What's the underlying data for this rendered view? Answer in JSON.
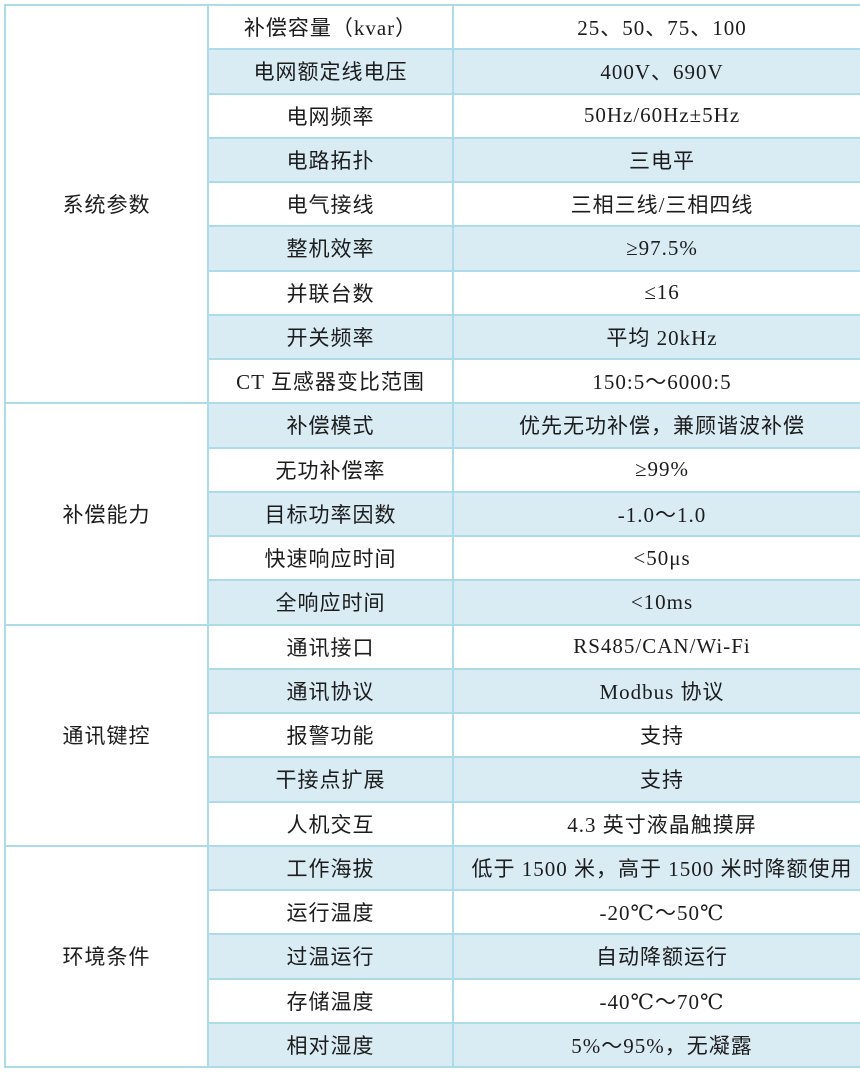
{
  "table": {
    "colors": {
      "row_alt_bg": "#d9ecf4",
      "border": "#aedbe9",
      "outer_border": "#a3d4e3",
      "text": "#1c1c1c"
    },
    "sections": [
      {
        "category": "系统参数",
        "rows": [
          {
            "label": "补偿容量（kvar）",
            "value": "25、50、75、100"
          },
          {
            "label": "电网额定线电压",
            "value": "400V、690V"
          },
          {
            "label": "电网频率",
            "value": "50Hz/60Hz±5Hz"
          },
          {
            "label": "电路拓扑",
            "value": "三电平"
          },
          {
            "label": "电气接线",
            "value": "三相三线/三相四线"
          },
          {
            "label": "整机效率",
            "value": "≥97.5%"
          },
          {
            "label": "并联台数",
            "value": "≤16"
          },
          {
            "label": "开关频率",
            "value": "平均 20kHz"
          },
          {
            "label": "CT 互感器变比范围",
            "value": "150:5～6000:5"
          }
        ]
      },
      {
        "category": "补偿能力",
        "rows": [
          {
            "label": "补偿模式",
            "value": "优先无功补偿，兼顾谐波补偿"
          },
          {
            "label": "无功补偿率",
            "value": "≥99%"
          },
          {
            "label": "目标功率因数",
            "value": "-1.0～1.0"
          },
          {
            "label": "快速响应时间",
            "value": "<50μs"
          },
          {
            "label": "全响应时间",
            "value": "<10ms"
          }
        ]
      },
      {
        "category": "通讯键控",
        "rows": [
          {
            "label": "通讯接口",
            "value": "RS485/CAN/Wi-Fi"
          },
          {
            "label": "通讯协议",
            "value": "Modbus 协议"
          },
          {
            "label": "报警功能",
            "value": "支持"
          },
          {
            "label": "干接点扩展",
            "value": "支持"
          },
          {
            "label": "人机交互",
            "value": "4.3 英寸液晶触摸屏"
          }
        ]
      },
      {
        "category": "环境条件",
        "rows": [
          {
            "label": "工作海拔",
            "value": "低于 1500 米，高于 1500 米时降额使用"
          },
          {
            "label": "运行温度",
            "value": "-20℃～50℃"
          },
          {
            "label": "过温运行",
            "value": "自动降额运行"
          },
          {
            "label": "存储温度",
            "value": "-40℃～70℃"
          },
          {
            "label": "相对湿度",
            "value": "5%～95%，无凝露"
          }
        ]
      }
    ]
  }
}
